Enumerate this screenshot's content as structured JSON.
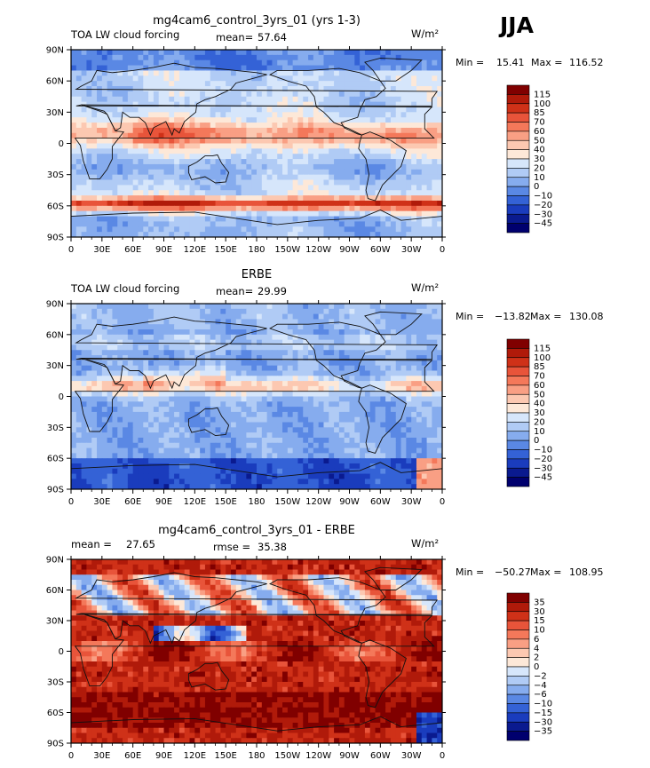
{
  "season": "JJA",
  "chart_data": [
    {
      "type": "heatmap",
      "title": "mg4cam6_control_3yrs_01 (yrs 1-3)",
      "left_label": "TOA LW cloud forcing",
      "stat_label": "mean=",
      "stat_value": "57.64",
      "units": "W/m²",
      "min_label": "Min =",
      "min_value": "15.41",
      "max_label": "Max =",
      "max_value": "116.52",
      "contour_levels": [
        "115",
        "100",
        "85",
        "70",
        "60",
        "50",
        "40",
        "30",
        "20",
        "10",
        "0",
        "−10",
        "−20",
        "−30",
        "−45"
      ],
      "x_ticks": [
        "0",
        "30E",
        "60E",
        "90E",
        "120E",
        "150E",
        "180",
        "150W",
        "120W",
        "90W",
        "60W",
        "30W",
        "0"
      ],
      "y_ticks": [
        "90N",
        "60N",
        "30N",
        "0",
        "30S",
        "60S",
        "90S"
      ],
      "xlim": [
        0,
        360
      ],
      "ylim": [
        -90,
        90
      ]
    },
    {
      "type": "heatmap",
      "title": "ERBE",
      "left_label": "TOA LW cloud forcing",
      "stat_label": "mean=",
      "stat_value": "29.99",
      "units": "W/m²",
      "min_label": "Min =",
      "min_value": "−13.82",
      "max_label": "Max =",
      "max_value": "130.08",
      "contour_levels": [
        "115",
        "100",
        "85",
        "70",
        "60",
        "50",
        "40",
        "30",
        "20",
        "10",
        "0",
        "−10",
        "−20",
        "−30",
        "−45"
      ],
      "x_ticks": [
        "0",
        "30E",
        "60E",
        "90E",
        "120E",
        "150E",
        "180",
        "150W",
        "120W",
        "90W",
        "60W",
        "30W",
        "0"
      ],
      "y_ticks": [
        "90N",
        "60N",
        "30N",
        "0",
        "30S",
        "60S",
        "90S"
      ],
      "xlim": [
        0,
        360
      ],
      "ylim": [
        -90,
        90
      ]
    },
    {
      "type": "heatmap",
      "title": "mg4cam6_control_3yrs_01 - ERBE",
      "left_label": "mean =",
      "left_value": "27.65",
      "stat_label": "rmse =",
      "stat_value": "35.38",
      "units": "W/m²",
      "min_label": "Min =",
      "min_value": "−50.27",
      "max_label": "Max =",
      "max_value": "108.95",
      "contour_levels": [
        "35",
        "30",
        "15",
        "10",
        "6",
        "4",
        "2",
        "0",
        "−2",
        "−4",
        "−6",
        "−10",
        "−15",
        "−30",
        "−35"
      ],
      "x_ticks": [
        "0",
        "30E",
        "60E",
        "90E",
        "120E",
        "150E",
        "180",
        "150W",
        "120W",
        "90W",
        "60W",
        "30W",
        "0"
      ],
      "y_ticks": [
        "90N",
        "60N",
        "30N",
        "0",
        "30S",
        "60S",
        "90S"
      ],
      "xlim": [
        0,
        360
      ],
      "ylim": [
        -90,
        90
      ]
    }
  ],
  "palette": [
    "#800000",
    "#b01a0a",
    "#cf3118",
    "#e8543a",
    "#f4785a",
    "#f99f84",
    "#fcc8b1",
    "#fde8d8",
    "#d6e6fb",
    "#b0cbf5",
    "#86acee",
    "#5a88e4",
    "#3462d6",
    "#1a3cbd",
    "#0a1a8f",
    "#00006e"
  ]
}
